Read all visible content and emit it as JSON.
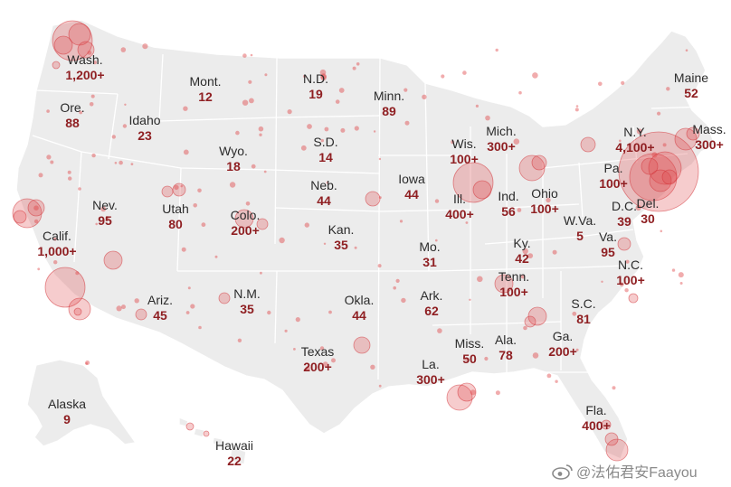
{
  "map": {
    "states": [
      {
        "key": "wa",
        "name": "Wash.",
        "count": "1,200+"
      },
      {
        "key": "or",
        "name": "Ore.",
        "count": "88"
      },
      {
        "key": "ca",
        "name": "Calif.",
        "count": "1,000+"
      },
      {
        "key": "nv",
        "name": "Nev.",
        "count": "95"
      },
      {
        "key": "id",
        "name": "Idaho",
        "count": "23"
      },
      {
        "key": "mt",
        "name": "Mont.",
        "count": "12"
      },
      {
        "key": "wy",
        "name": "Wyo.",
        "count": "18"
      },
      {
        "key": "ut",
        "name": "Utah",
        "count": "80"
      },
      {
        "key": "co",
        "name": "Colo.",
        "count": "200+"
      },
      {
        "key": "az",
        "name": "Ariz.",
        "count": "45"
      },
      {
        "key": "nm",
        "name": "N.M.",
        "count": "35"
      },
      {
        "key": "nd",
        "name": "N.D.",
        "count": "19"
      },
      {
        "key": "sd",
        "name": "S.D.",
        "count": "14"
      },
      {
        "key": "ne",
        "name": "Neb.",
        "count": "44"
      },
      {
        "key": "ks",
        "name": "Kan.",
        "count": "35"
      },
      {
        "key": "ok",
        "name": "Okla.",
        "count": "44"
      },
      {
        "key": "tx",
        "name": "Texas",
        "count": "200+"
      },
      {
        "key": "mn",
        "name": "Minn.",
        "count": "89"
      },
      {
        "key": "ia",
        "name": "Iowa",
        "count": "44"
      },
      {
        "key": "mo",
        "name": "Mo.",
        "count": "31"
      },
      {
        "key": "ar",
        "name": "Ark.",
        "count": "62"
      },
      {
        "key": "la",
        "name": "La.",
        "count": "300+"
      },
      {
        "key": "wi",
        "name": "Wis.",
        "count": "100+"
      },
      {
        "key": "il",
        "name": "Ill.",
        "count": "400+"
      },
      {
        "key": "ms",
        "name": "Miss.",
        "count": "50"
      },
      {
        "key": "mi",
        "name": "Mich.",
        "count": "300+"
      },
      {
        "key": "in",
        "name": "Ind.",
        "count": "56"
      },
      {
        "key": "oh",
        "name": "Ohio",
        "count": "100+"
      },
      {
        "key": "ky",
        "name": "Ky.",
        "count": "42"
      },
      {
        "key": "tn",
        "name": "Tenn.",
        "count": "100+"
      },
      {
        "key": "al",
        "name": "Ala.",
        "count": "78"
      },
      {
        "key": "ga",
        "name": "Ga.",
        "count": "200+"
      },
      {
        "key": "fl",
        "name": "Fla.",
        "count": "400+"
      },
      {
        "key": "sc",
        "name": "S.C.",
        "count": "81"
      },
      {
        "key": "nc",
        "name": "N.C.",
        "count": "100+"
      },
      {
        "key": "va",
        "name": "Va.",
        "count": "95"
      },
      {
        "key": "wv",
        "name": "W.Va.",
        "count": "5"
      },
      {
        "key": "pa",
        "name": "Pa.",
        "count": "100+"
      },
      {
        "key": "ny",
        "name": "N.Y.",
        "count": "4,100+"
      },
      {
        "key": "dc",
        "name": "D.C.",
        "count": "39"
      },
      {
        "key": "de",
        "name": "Del.",
        "count": "30"
      },
      {
        "key": "ma",
        "name": "Mass.",
        "count": "300+"
      },
      {
        "key": "me",
        "name": "Maine",
        "count": "52"
      },
      {
        "key": "ak",
        "name": "Alaska",
        "count": "9"
      },
      {
        "key": "hi",
        "name": "Hawaii",
        "count": "22"
      }
    ],
    "colors": {
      "land": "#ececec",
      "bubble": "#e0474a",
      "count_text": "#8f1f22"
    }
  },
  "watermark": {
    "text": "@法佑君安Faayou",
    "icon": "weibo-icon"
  }
}
